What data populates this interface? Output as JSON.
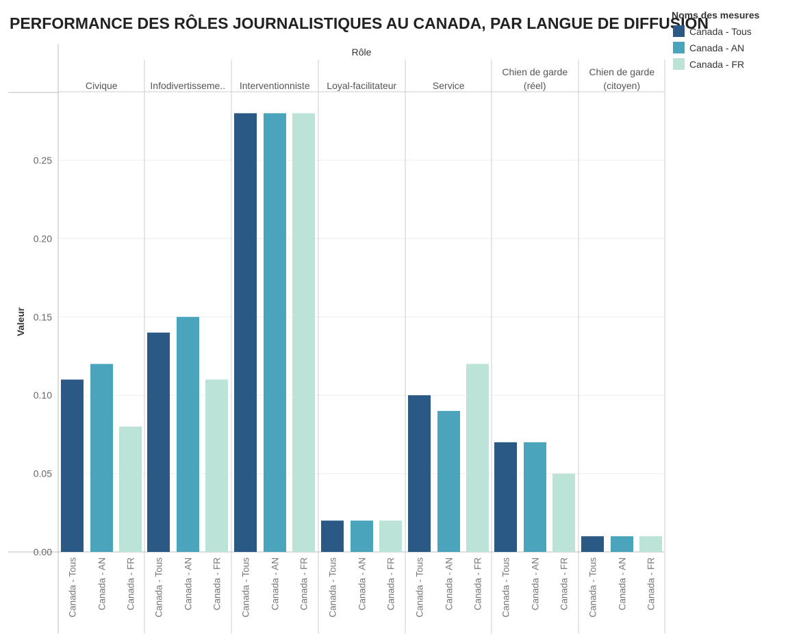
{
  "colors": {
    "tous": "#2b5985",
    "an": "#4aa5bc",
    "fr": "#bbe3d8",
    "grid": "#eeeeee",
    "axis": "#bbbbbb"
  },
  "chart_data": {
    "type": "bar",
    "title": "PERFORMANCE DES RÔLES JOURNALISTIQUES AU CANADA, PAR LANGUE DE DIFFUSION",
    "column_header": "Rôle",
    "ylabel": "Valeur",
    "ylim": [
      0,
      0.29
    ],
    "yticks": [
      "0.00",
      "0.05",
      "0.10",
      "0.15",
      "0.20",
      "0.25"
    ],
    "ytick_values": [
      0,
      0.05,
      0.1,
      0.15,
      0.2,
      0.25
    ],
    "legend_title": "Noms des mesures",
    "series_names": [
      "Canada - Tous",
      "Canada - AN",
      "Canada - FR"
    ],
    "x_labels": [
      "Canada - Tous",
      "Canada - AN",
      "Canada - FR"
    ],
    "categories": [
      {
        "lines": [
          "Civique"
        ],
        "values": [
          0.11,
          0.12,
          0.08
        ]
      },
      {
        "lines": [
          "Infodivertisseme.."
        ],
        "values": [
          0.14,
          0.15,
          0.11
        ]
      },
      {
        "lines": [
          "Interventionniste"
        ],
        "values": [
          0.28,
          0.28,
          0.28
        ]
      },
      {
        "lines": [
          "Loyal-facilitateur"
        ],
        "values": [
          0.02,
          0.02,
          0.02
        ]
      },
      {
        "lines": [
          "Service"
        ],
        "values": [
          0.1,
          0.09,
          0.12
        ]
      },
      {
        "lines": [
          "Chien de garde",
          "(réel)"
        ],
        "values": [
          0.07,
          0.07,
          0.05
        ]
      },
      {
        "lines": [
          "Chien de garde",
          "(citoyen)"
        ],
        "values": [
          0.01,
          0.01,
          0.01
        ]
      }
    ]
  }
}
